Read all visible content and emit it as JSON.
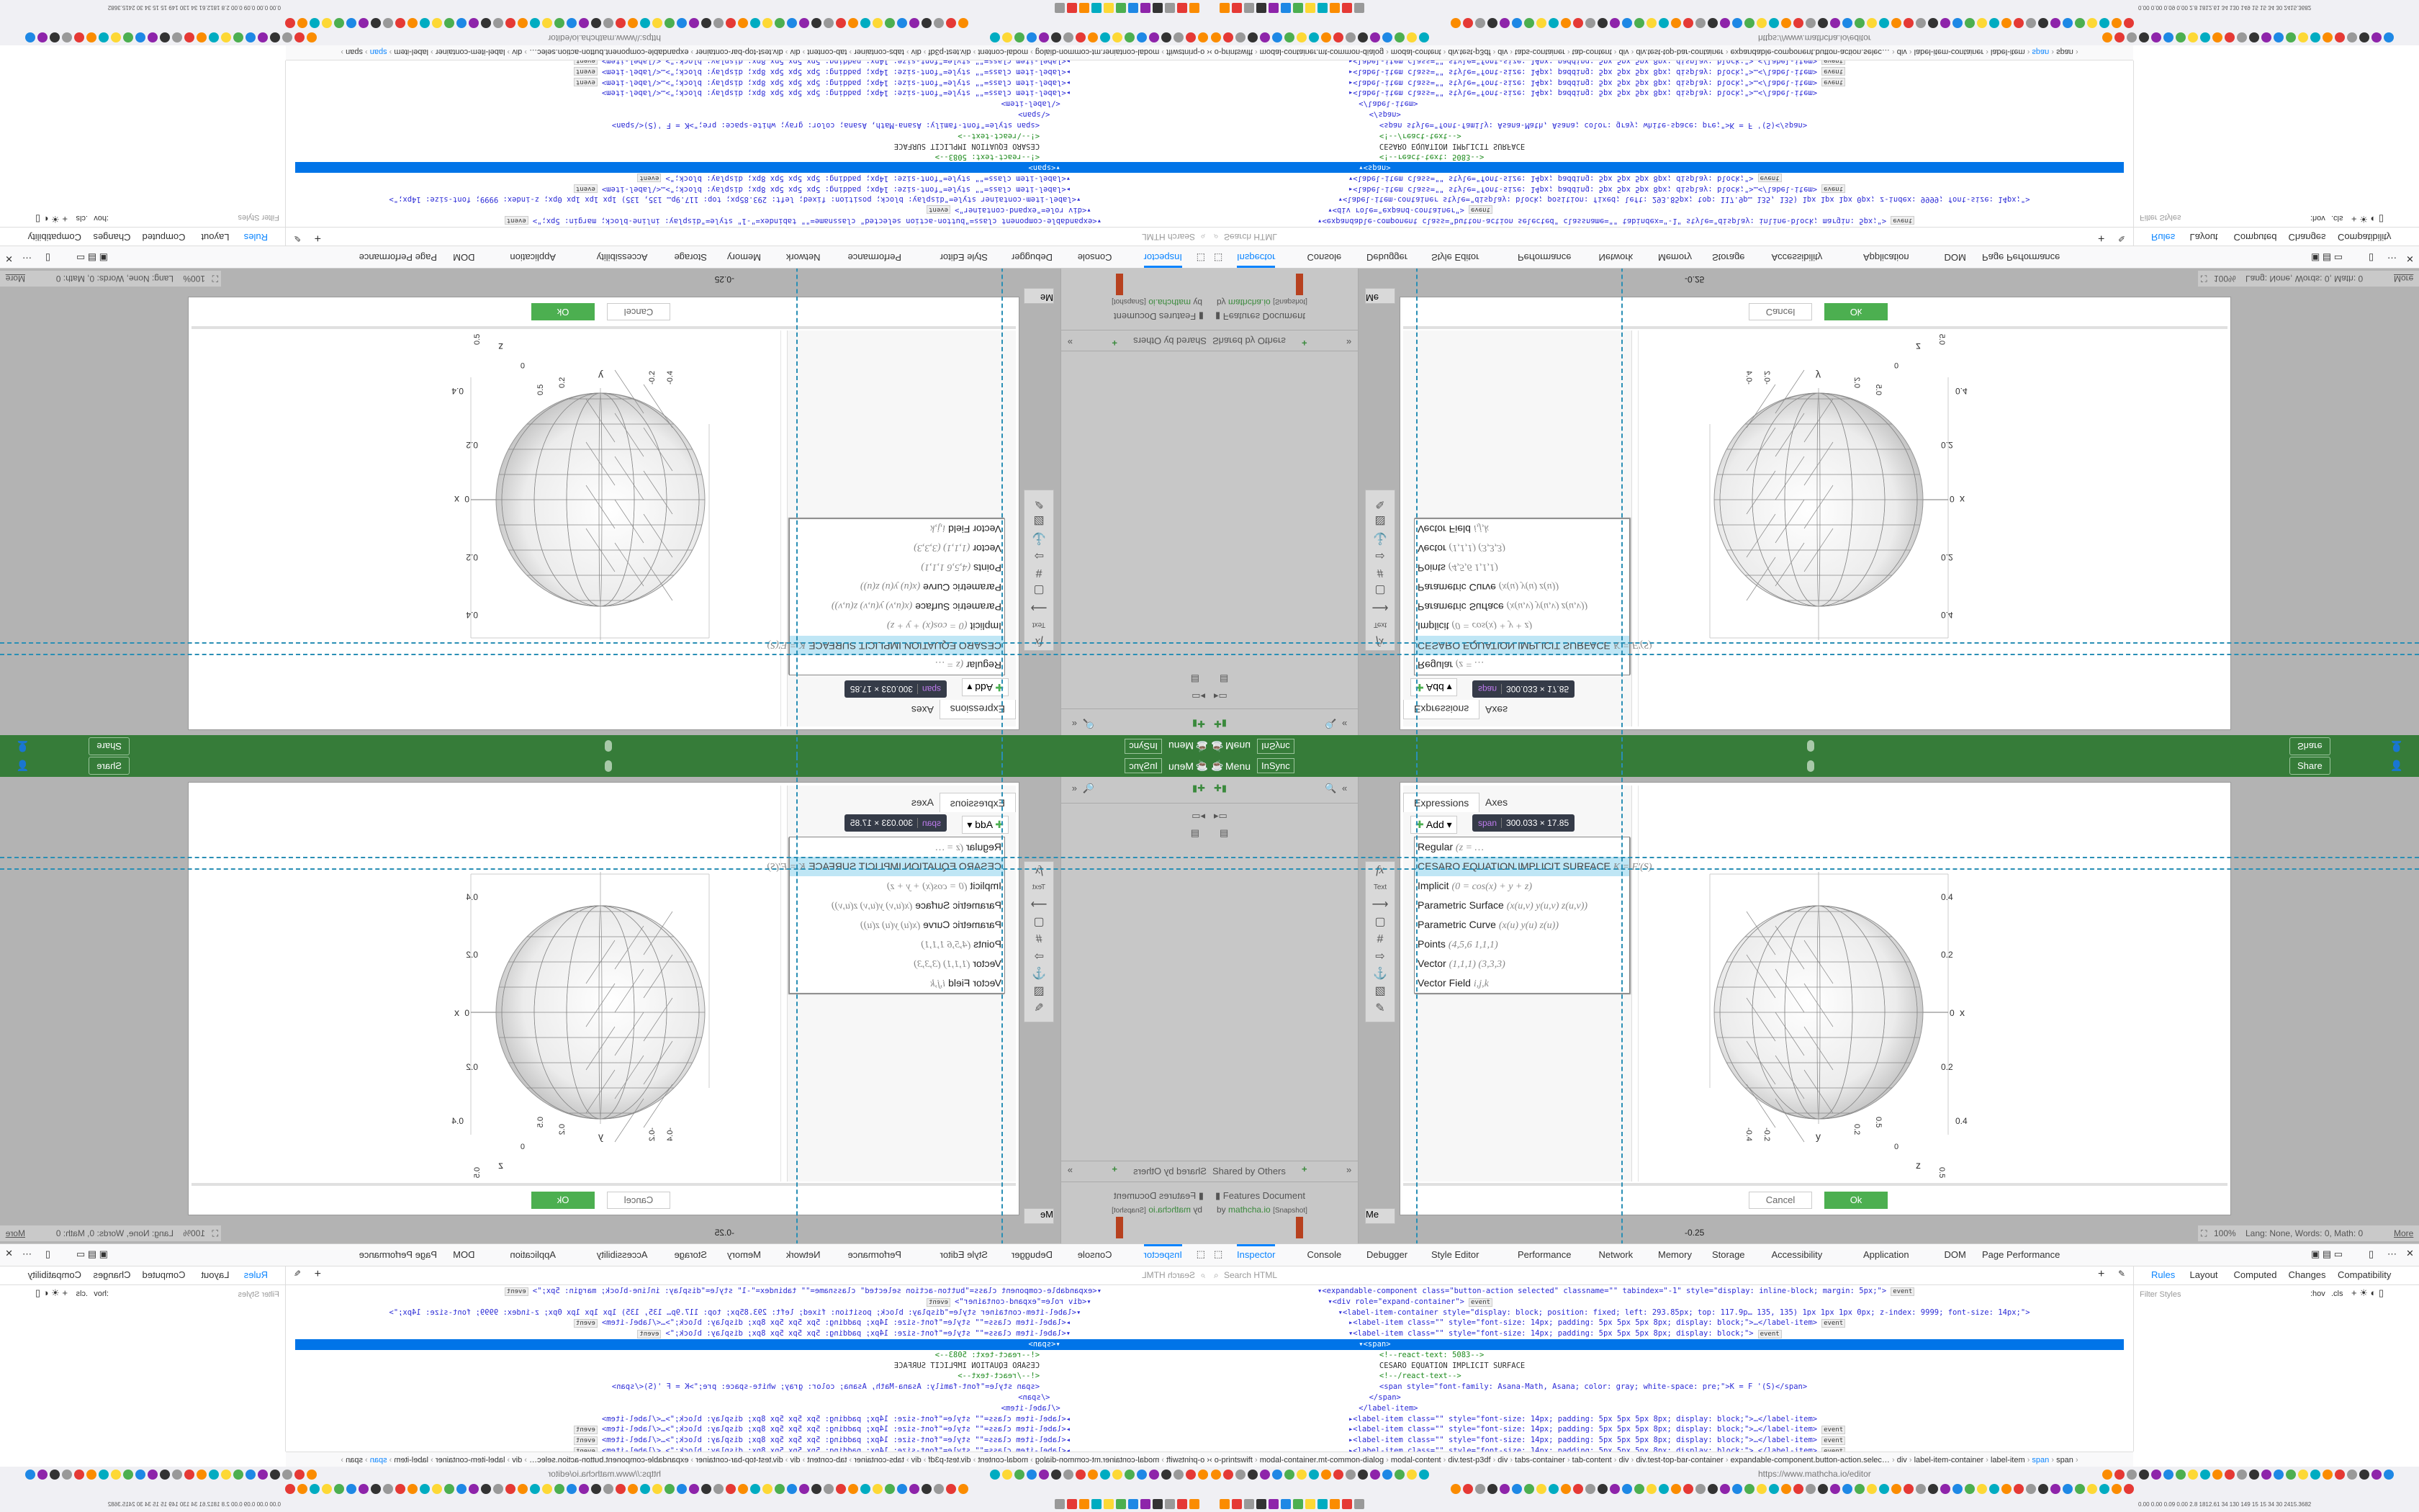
{
  "mathcha": {
    "top_bar": {
      "menu_label": "Menu",
      "insync_label": "InSync",
      "share_label": "Share"
    },
    "sidebar": {
      "shared_by_others": "Shared by Others",
      "features_document": "Features Document",
      "by_label": "by",
      "author": "mathcha.io",
      "snapshot": "[Snapshot]",
      "mobile_label": "Me"
    },
    "toolbar": {
      "fx": "fx",
      "text": "Text"
    },
    "status": {
      "zoom": "100%",
      "info": "Lang: None, Words: 0, Math: 0",
      "more": "More"
    },
    "ruler_label": "-0.25"
  },
  "dialog": {
    "tabs": [
      "Expressions",
      "Axes"
    ],
    "add_label": "Add",
    "items": [
      {
        "label": "Regular",
        "formula": "(z = …"
      },
      {
        "label": "CESARO EQUATION IMPLICIT SURFACE",
        "formula": "K = F′(S)"
      },
      {
        "label": "Implicit",
        "formula": "(0 = cos(x) + y + z)"
      },
      {
        "label": "Parametric Surface",
        "formula": "(x(u,v) y(u,v) z(u,v))"
      },
      {
        "label": "Parametric Curve",
        "formula": "(x(u) y(u) z(u))"
      },
      {
        "label": "Points",
        "formula": "(4,5,6 1,1,1)"
      },
      {
        "label": "Vector",
        "formula": "(1,1,1) (3,3,3)"
      },
      {
        "label": "Vector Field",
        "formula": "i,j,k"
      }
    ],
    "tooltip": {
      "tag": "span",
      "size": "300.033 × 17.85"
    },
    "cancel_label": "Cancel",
    "ok_label": "Ok",
    "plot": {
      "axis_labels": {
        "x": "x",
        "y": "y",
        "z": "z"
      },
      "x_ticks": [
        "0.4",
        "0.2",
        "0",
        "0.2",
        "0.4"
      ],
      "side_ticks": [
        "-0.4",
        "-0.2",
        "0.2",
        "0.5"
      ],
      "z_ticks": [
        "0",
        "0.5"
      ]
    }
  },
  "devtools": {
    "tabs": [
      "Inspector",
      "Console",
      "Debugger",
      "Style Editor",
      "Performance",
      "Network",
      "Memory",
      "Storage",
      "Accessibility",
      "Application",
      "DOM",
      "Page Performance"
    ],
    "active_tab": "Inspector",
    "search_placeholder": "Search HTML",
    "side_tabs": [
      "Rules",
      "Layout",
      "Computed",
      "Changes",
      "Compatibility",
      "Fonts"
    ],
    "filter_placeholder": "Filter Styles",
    "hov": ":hov",
    "cls": ".cls",
    "event": "event",
    "lines": [
      "▾<expandable-component class=\"button-action selected\" classname=\"\" tabindex=\"-1\" style=\"display: inline-block; margin: 5px;\">",
      " ▾<div role=\"expand-container\">",
      "  ▾<label-item-container style=\"display: block; position: fixed; left: 293.85px; top: 117.9p… 135, 135) 1px 1px 1px 0px; z-index: 9999; font-size: 14px;\">",
      "   ▸<label-item class=\"\" style=\"font-size: 14px; padding: 5px 5px 5px 8px; display: block;\">…</label-item>",
      "   ▾<label-item class=\"\" style=\"font-size: 14px; padding: 5px 5px 5px 8px; display: block;\">",
      "    ▾<span>",
      "      <!--react-text: 5083-->",
      "      CESARO EQUATION IMPLICIT SURFACE",
      "      <!--/react-text-->",
      "      <span style=\"font-family: Asana-Math, Asana; color: gray; white-space: pre;\">K = F '(S)</span>",
      "     </span>",
      "    </label-item>",
      "   ▸<label-item class=\"\" style=\"font-size: 14px; padding: 5px 5px 5px 8px; display: block;\">…</label-item>",
      "   ▸<label-item class=\"\" style=\"font-size: 14px; padding: 5px 5px 5px 8px; display: block;\">…</label-item>",
      "   ▸<label-item class=\"\" style=\"font-size: 14px; padding: 5px 5px 5px 8px; display: block;\">…</label-item>",
      "   ▸<label-item class=\"\" style=\"font-size: 14px; padding: 5px 5px 5px 8px; display: block;\">…</label-item>"
    ],
    "breadcrumb": [
      "o-printswift",
      "modal-container.mt-common-dialog",
      "modal-content",
      "div.test-p3df",
      "div",
      "tabs-container",
      "tab-content",
      "div",
      "div.test-top-bar-container",
      "expandable-component.button-action.selec…",
      "div",
      "label-item-container",
      "label-item",
      "span",
      "span"
    ]
  },
  "browser": {
    "url": "https://www.mathcha.io/editor",
    "sysinfo": "0.00 0.00 0.09 0.00 2.8 1812.61 34 130 149 15 15 34 30 2415.3682"
  },
  "colors": {
    "green_bar": "#367c39",
    "ok_button": "#4caf50",
    "selection": "#0074e8",
    "highlight": "#bfe6f5",
    "guides": "#2a8fb5"
  }
}
